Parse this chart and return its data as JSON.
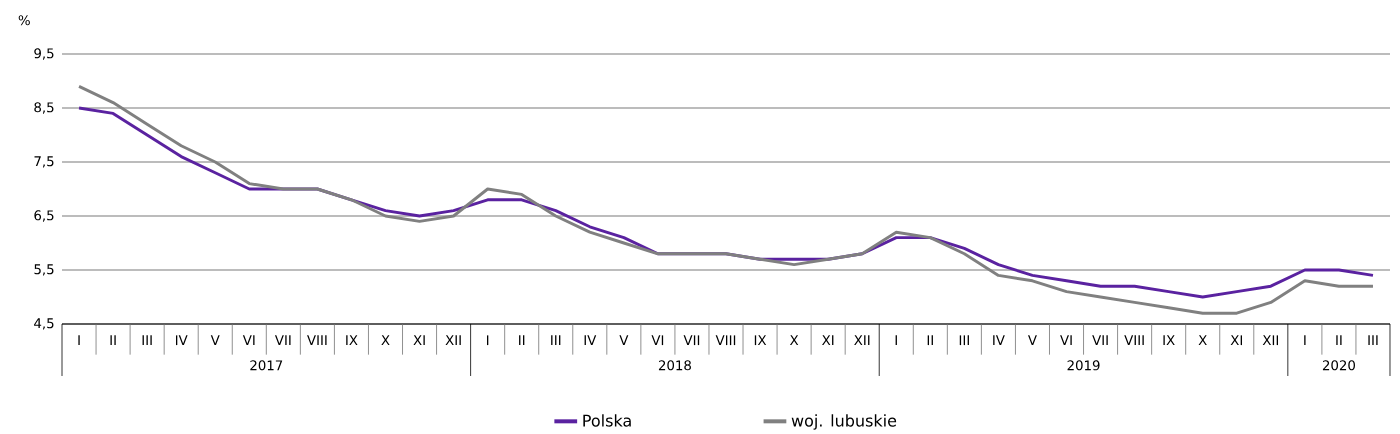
{
  "chart_data": {
    "type": "line",
    "ylabel": "%",
    "categories": [
      "I",
      "II",
      "III",
      "IV",
      "V",
      "VI",
      "VII",
      "VIII",
      "IX",
      "X",
      "XI",
      "XII",
      "I",
      "II",
      "III",
      "IV",
      "V",
      "VI",
      "VII",
      "VIII",
      "IX",
      "X",
      "XI",
      "XII",
      "I",
      "II",
      "III",
      "IV",
      "V",
      "VI",
      "VII",
      "VIII",
      "IX",
      "X",
      "XI",
      "XII",
      "I",
      "II",
      "III"
    ],
    "annotations": [
      "2017",
      "2018",
      "2019",
      "2020"
    ],
    "series": [
      {
        "name": "Polska",
        "color": "#5a22a0",
        "values": [
          8.5,
          8.4,
          8.0,
          7.6,
          7.3,
          7.0,
          7.0,
          7.0,
          6.8,
          6.6,
          6.5,
          6.6,
          6.8,
          6.8,
          6.6,
          6.3,
          6.1,
          5.8,
          5.8,
          5.8,
          5.7,
          5.7,
          5.7,
          5.8,
          6.1,
          6.1,
          5.9,
          5.6,
          5.4,
          5.3,
          5.2,
          5.2,
          5.1,
          5.0,
          5.1,
          5.2,
          5.5,
          5.5,
          5.4
        ]
      },
      {
        "name": "woj. lubuskie",
        "color": "#808080",
        "values": [
          8.9,
          8.6,
          8.2,
          7.8,
          7.5,
          7.1,
          7.0,
          7.0,
          6.8,
          6.5,
          6.4,
          6.5,
          7.0,
          6.9,
          6.5,
          6.2,
          6.0,
          5.8,
          5.8,
          5.8,
          5.7,
          5.6,
          5.7,
          5.8,
          6.2,
          6.1,
          5.8,
          5.4,
          5.3,
          5.1,
          5.0,
          4.9,
          4.8,
          4.7,
          4.7,
          4.9,
          5.3,
          5.2,
          5.2
        ]
      }
    ],
    "ylim": [
      4.5,
      9.5
    ],
    "yticks": [
      {
        "value": 4.5,
        "label": "4,5"
      },
      {
        "value": 5.5,
        "label": "5,5"
      },
      {
        "value": 6.5,
        "label": "6,5"
      },
      {
        "value": 7.5,
        "label": "7,5"
      },
      {
        "value": 8.5,
        "label": "8,5"
      },
      {
        "value": 9.5,
        "label": "9,5"
      }
    ],
    "grid": "y",
    "legend": "bottom"
  }
}
